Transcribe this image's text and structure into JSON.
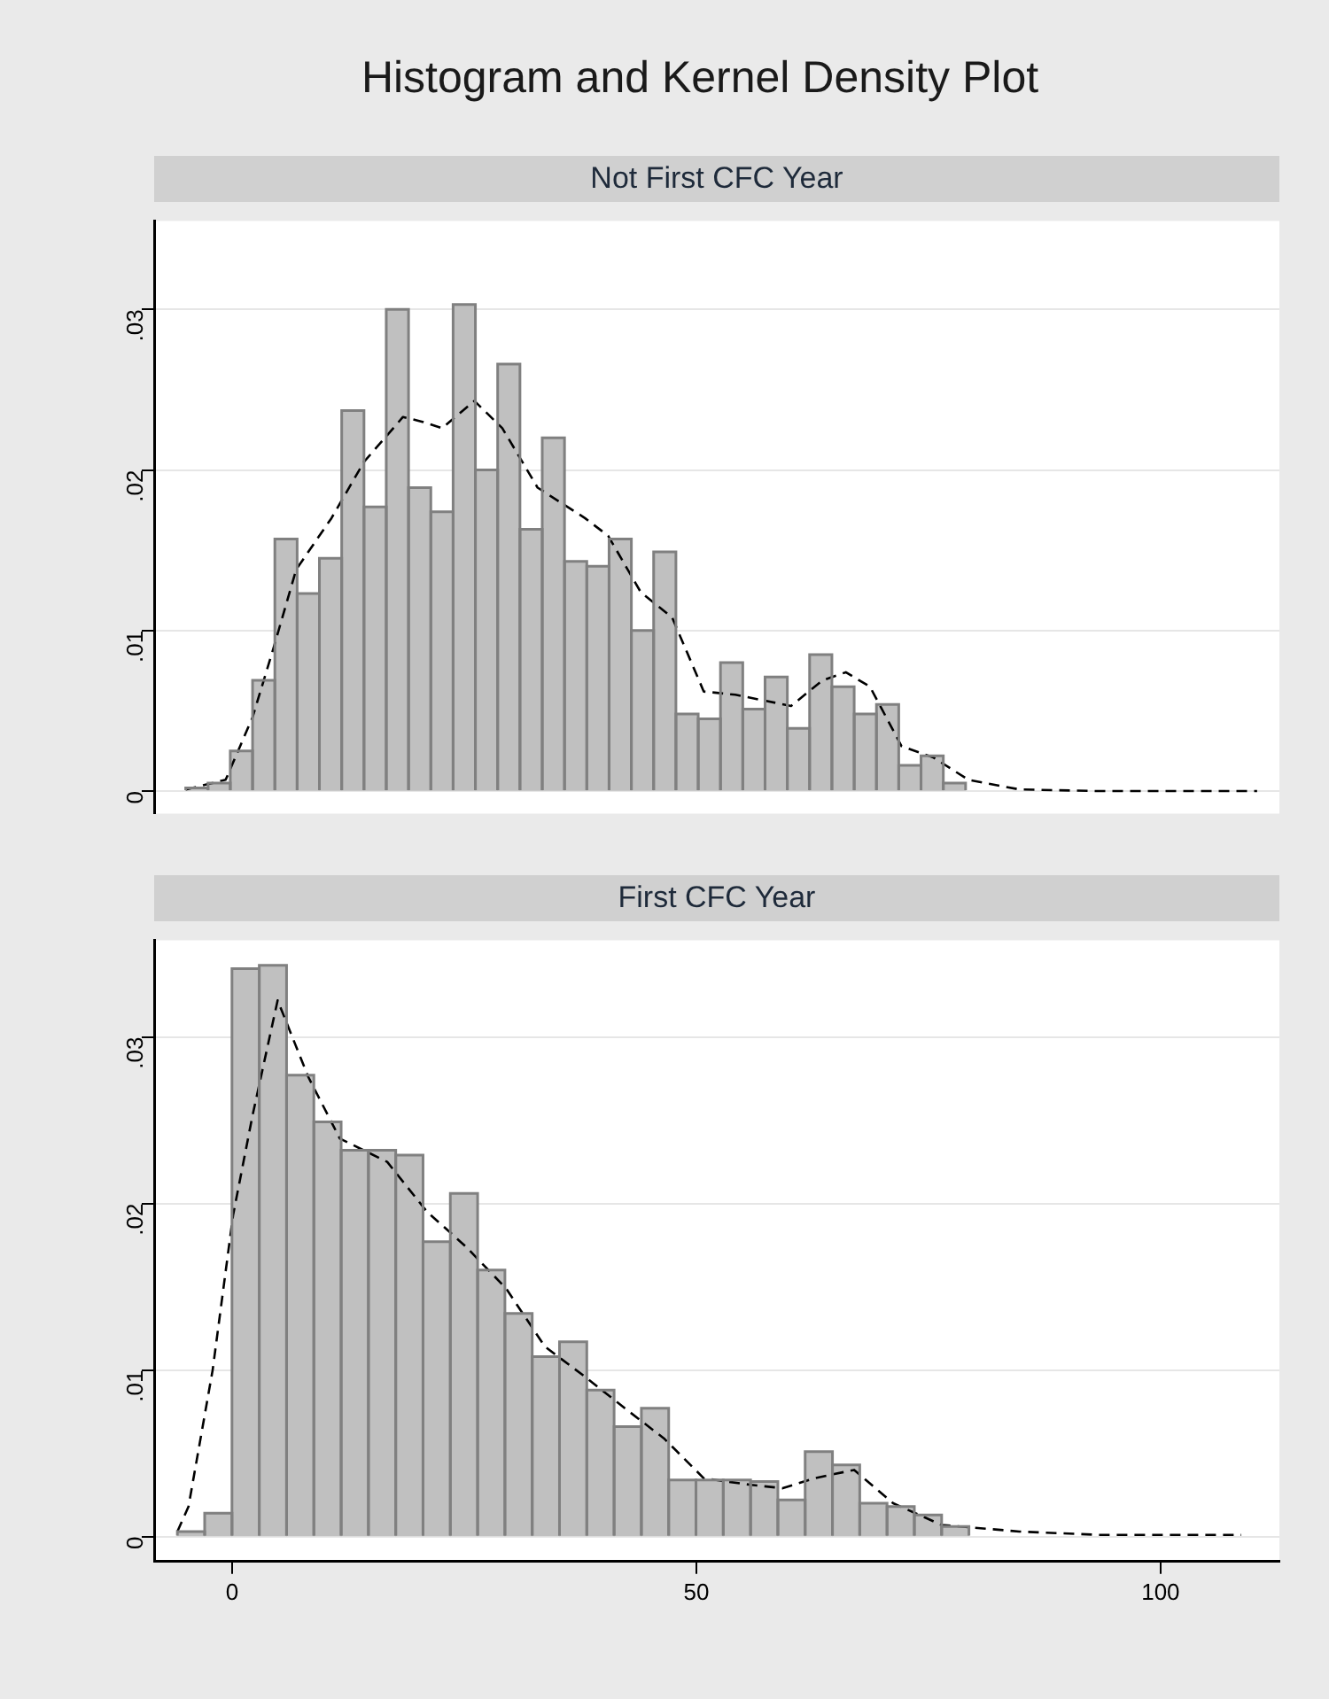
{
  "chart_data": [
    {
      "type": "histogram",
      "title": "Histogram and Kernel Density Plot",
      "subtitle": "Not First CFC Year",
      "xlim": [
        -8.4,
        112.8
      ],
      "ylim": [
        -0.0014,
        0.0355
      ],
      "yticks": [
        {
          "value": 0,
          "label": "0"
        },
        {
          "value": 0.01,
          "label": ".01"
        },
        {
          "value": 0.02,
          "label": ".02"
        },
        {
          "value": 0.03,
          "label": ".03"
        }
      ],
      "tick_labels": "y",
      "grid": "y",
      "legend": false,
      "series": [
        {
          "type": "histogram",
          "color": "#c0c0c0",
          "bins": [
            -5,
            -2.6,
            -0.2,
            2.2,
            4.6,
            7,
            9.4,
            11.8,
            14.2,
            16.6,
            19,
            21.4,
            23.8,
            26.2,
            28.6,
            31,
            33.4,
            35.8,
            38.2,
            40.6,
            43,
            45.4,
            47.8,
            50.2,
            52.6,
            55,
            57.4,
            59.8,
            62.2,
            64.6,
            67,
            69.4,
            71.8,
            74.2,
            76.6,
            79
          ],
          "values": [
            0.0002,
            0.0005,
            0.0025,
            0.0069,
            0.0157,
            0.0123,
            0.0145,
            0.0237,
            0.0177,
            0.03,
            0.0189,
            0.0174,
            0.0303,
            0.02,
            0.0266,
            0.0163,
            0.022,
            0.0143,
            0.014,
            0.0157,
            0.01,
            0.0149,
            0.0048,
            0.0045,
            0.008,
            0.0051,
            0.0071,
            0.0039,
            0.0085,
            0.0065,
            0.0048,
            0.0054,
            0.0016,
            0.0022,
            0.0005
          ]
        },
        {
          "type": "line",
          "color": "#000000",
          "line_style": "dashed",
          "marker": "none",
          "x": [
            -5,
            -0.7,
            2.2,
            4.4,
            6.9,
            10.7,
            14.2,
            18.4,
            20.5,
            22.6,
            26.1,
            29.1,
            32.9,
            38.0,
            40.5,
            44.0,
            47.4,
            50.8,
            54.2,
            60.2,
            63.6,
            66.1,
            68.7,
            72.1,
            75.5,
            79.3,
            84.8,
            93.3,
            110.4
          ],
          "values": [
            0.0001,
            0.0007,
            0.0046,
            0.0088,
            0.0138,
            0.017,
            0.0205,
            0.0233,
            0.023,
            0.0226,
            0.0243,
            0.0226,
            0.0189,
            0.017,
            0.0159,
            0.0124,
            0.0108,
            0.0062,
            0.006,
            0.0053,
            0.0069,
            0.0074,
            0.0065,
            0.0028,
            0.0021,
            0.0007,
            0.0001,
            0,
            0
          ]
        }
      ]
    },
    {
      "type": "histogram",
      "subtitle": "First CFC Year",
      "xlim": [
        -8.4,
        112.8
      ],
      "ylim": [
        -0.0015,
        0.0358
      ],
      "xticks": [
        0,
        50,
        100
      ],
      "yticks": [
        {
          "value": 0,
          "label": "0"
        },
        {
          "value": 0.01,
          "label": ".01"
        },
        {
          "value": 0.02,
          "label": ".02"
        },
        {
          "value": 0.03,
          "label": ".03"
        }
      ],
      "grid": "y",
      "legend": false,
      "series": [
        {
          "type": "histogram",
          "color": "#c0c0c0",
          "bins": [
            -5.9,
            -2.96,
            -0.02,
            2.92,
            5.86,
            8.8,
            11.74,
            14.68,
            17.62,
            20.56,
            23.5,
            26.44,
            29.38,
            32.32,
            35.26,
            38.2,
            41.14,
            44.08,
            47.02,
            49.96,
            52.9,
            55.84,
            58.78,
            61.72,
            64.66,
            67.6,
            70.54,
            73.48,
            76.42,
            79.36
          ],
          "values": [
            0.0003,
            0.0014,
            0.0341,
            0.0343,
            0.0277,
            0.0249,
            0.0232,
            0.0232,
            0.0229,
            0.0177,
            0.0206,
            0.016,
            0.0134,
            0.0108,
            0.0117,
            0.0088,
            0.0066,
            0.0077,
            0.0034,
            0.0034,
            0.0034,
            0.0033,
            0.0022,
            0.0051,
            0.0043,
            0.002,
            0.0018,
            0.0013,
            0.0006
          ]
        },
        {
          "type": "line",
          "color": "#000000",
          "line_style": "dashed",
          "marker": "none",
          "x": [
            -5.9,
            -4.7,
            -2.1,
            0.1,
            2.2,
            4.9,
            8.2,
            11.6,
            16.7,
            21.0,
            25.2,
            29.5,
            33.7,
            38.0,
            42.3,
            46.5,
            50.8,
            55.9,
            59.3,
            62.7,
            67.0,
            71.2,
            76.4,
            84.8,
            93.3,
            108.7
          ],
          "values": [
            0.0003,
            0.0018,
            0.01,
            0.0193,
            0.0253,
            0.0322,
            0.0276,
            0.0239,
            0.0225,
            0.0195,
            0.0174,
            0.0149,
            0.0114,
            0.0096,
            0.0077,
            0.0059,
            0.0035,
            0.0031,
            0.0029,
            0.0035,
            0.004,
            0.002,
            0.0007,
            0.0003,
            0.0001,
            0.0001
          ]
        }
      ]
    }
  ]
}
